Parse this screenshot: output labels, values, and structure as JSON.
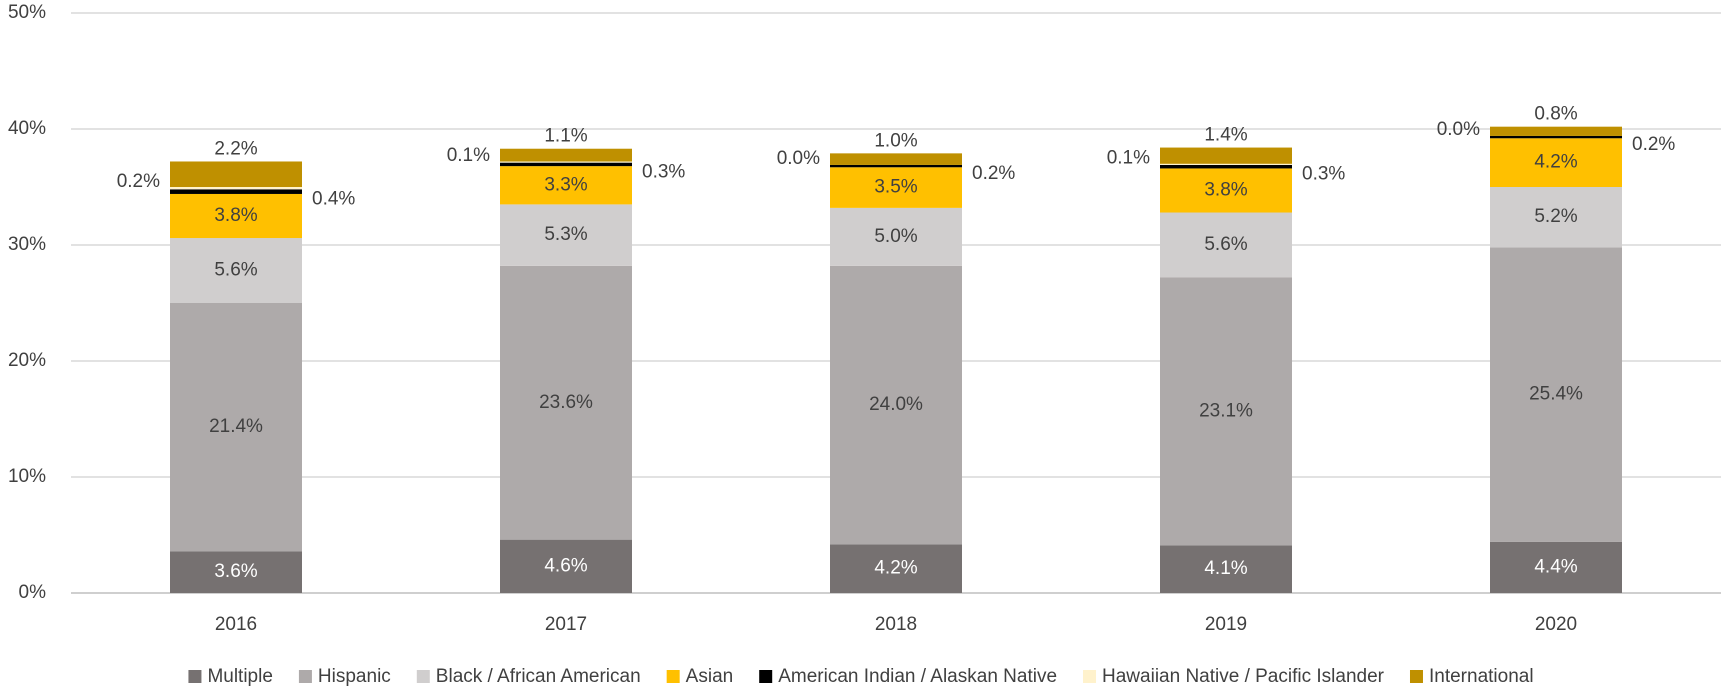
{
  "chart_data": {
    "type": "stacked_bar",
    "categories": [
      "2016",
      "2017",
      "2018",
      "2019",
      "2020"
    ],
    "series": [
      {
        "name": "Multiple",
        "color": "#767171",
        "values": [
          3.6,
          4.6,
          4.2,
          4.1,
          4.4
        ],
        "value_labels": [
          "3.6%",
          "4.6%",
          "4.2%",
          "4.1%",
          "4.4%"
        ]
      },
      {
        "name": "Hispanic",
        "color": "#aeaaaa",
        "values": [
          21.4,
          23.6,
          24.0,
          23.1,
          25.4
        ],
        "value_labels": [
          "21.4%",
          "23.6%",
          "24.0%",
          "23.1%",
          "25.4%"
        ]
      },
      {
        "name": "Black / African American",
        "color": "#d0cece",
        "values": [
          5.6,
          5.3,
          5.0,
          5.6,
          5.2
        ],
        "value_labels": [
          "5.6%",
          "5.3%",
          "5.0%",
          "5.6%",
          "5.2%"
        ]
      },
      {
        "name": "Asian",
        "color": "#ffc000",
        "values": [
          3.8,
          3.3,
          3.5,
          3.8,
          4.2
        ],
        "value_labels": [
          "3.8%",
          "3.3%",
          "3.5%",
          "3.8%",
          "4.2%"
        ]
      },
      {
        "name": "American Indian / Alaskan Native",
        "color": "#000000",
        "values": [
          0.4,
          0.3,
          0.2,
          0.3,
          0.2
        ],
        "value_labels": [
          "0.4%",
          "0.3%",
          "0.2%",
          "0.3%",
          "0.2%"
        ]
      },
      {
        "name": "Hawaiian Native / Pacific Islander",
        "color": "#fff2cc",
        "values": [
          0.2,
          0.1,
          0.0,
          0.1,
          0.0
        ],
        "value_labels": [
          "0.2%",
          "0.1%",
          "0.0%",
          "0.1%",
          "0.0%"
        ]
      },
      {
        "name": "International",
        "color": "#bf9000",
        "values": [
          2.2,
          1.1,
          1.0,
          1.4,
          0.8
        ],
        "value_labels": [
          "2.2%",
          "1.1%",
          "1.0%",
          "1.4%",
          "0.8%"
        ]
      }
    ],
    "ylim": [
      0,
      50
    ],
    "yticks": [
      {
        "value": 0,
        "label": "0%"
      },
      {
        "value": 10,
        "label": "10%"
      },
      {
        "value": 20,
        "label": "20%"
      },
      {
        "value": 30,
        "label": "30%"
      },
      {
        "value": 40,
        "label": "40%"
      },
      {
        "value": 50,
        "label": "50%"
      }
    ],
    "grid": true,
    "legend": "bottom"
  }
}
